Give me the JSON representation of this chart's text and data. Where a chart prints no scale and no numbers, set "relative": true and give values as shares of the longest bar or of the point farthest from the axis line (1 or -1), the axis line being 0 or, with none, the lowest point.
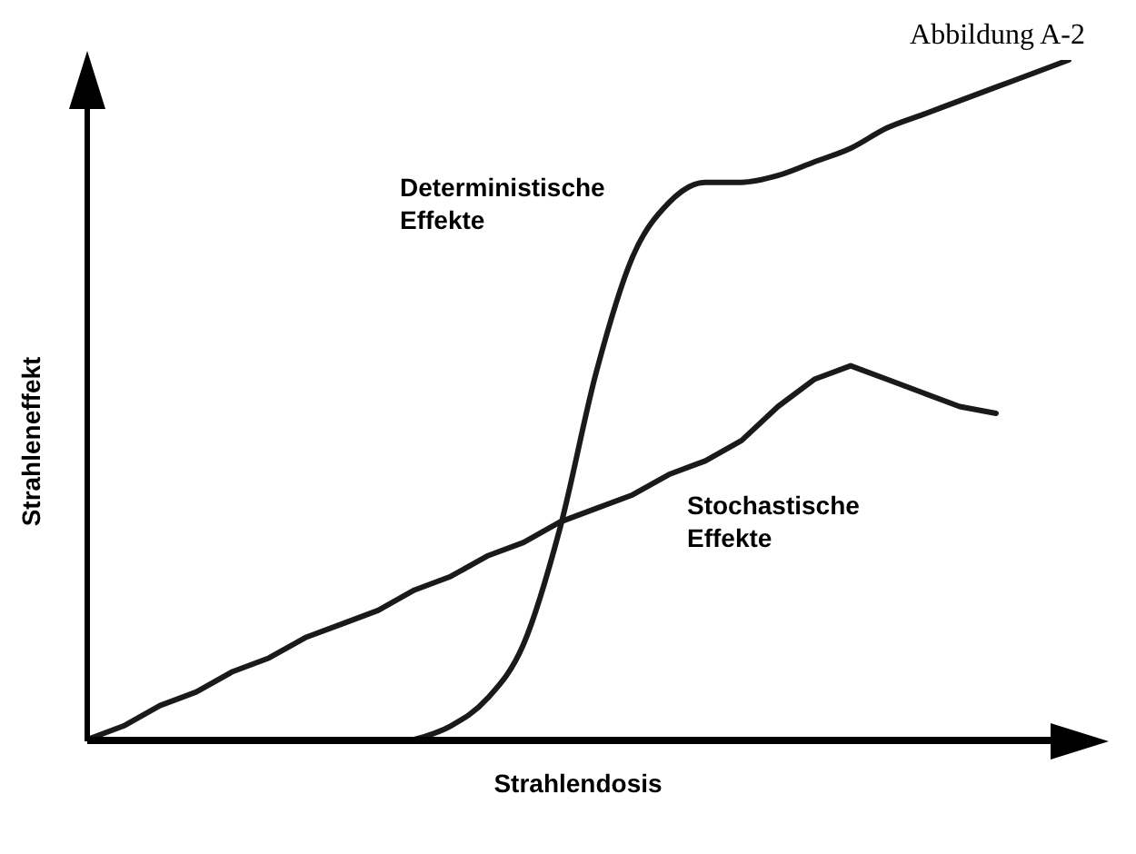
{
  "chart_data": {
    "type": "line",
    "relative": true,
    "title": "Abbildung A-2",
    "xlabel": "Strahlendosis",
    "ylabel": "Strahleneffekt",
    "categories": [
      null,
      null,
      null,
      null,
      null,
      null,
      null,
      null,
      null,
      null,
      null,
      null,
      null,
      null,
      null,
      null,
      null,
      null,
      null,
      null,
      null,
      null,
      null,
      null,
      null,
      null,
      null,
      null
    ],
    "series": [
      {
        "name": "Deterministische Effekte",
        "color": "#1a1a1a",
        "values": [
          null,
          null,
          null,
          null,
          null,
          null,
          null,
          null,
          null,
          0,
          0.02,
          0.06,
          0.14,
          0.31,
          0.54,
          0.71,
          0.79,
          0.82,
          0.82,
          0.83,
          0.85,
          0.87,
          0.9,
          0.92,
          0.94,
          0.96,
          0.98,
          1
        ]
      },
      {
        "name": "Stochastische Effekte",
        "color": "#1a1a1a",
        "values": [
          0,
          0.02,
          0.05,
          0.07,
          0.1,
          0.12,
          0.15,
          0.17,
          0.19,
          0.22,
          0.24,
          0.27,
          0.29,
          0.32,
          0.34,
          0.36,
          0.39,
          0.41,
          0.44,
          0.49,
          0.53,
          0.55,
          0.53,
          0.51,
          0.49,
          0.48,
          null,
          null
        ]
      }
    ],
    "legend": false,
    "grid": false,
    "marker": "none",
    "line_style": "solid"
  }
}
